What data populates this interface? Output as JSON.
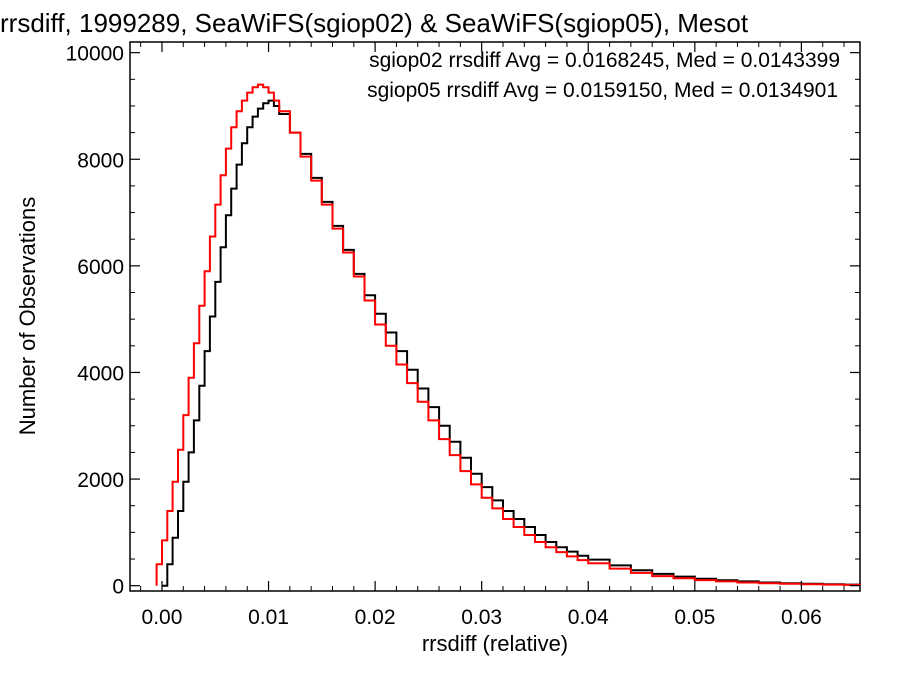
{
  "chart_data": {
    "type": "line",
    "title": "rrsdiff, 1999289, SeaWiFS(sgiop02) & SeaWiFS(sgiop05), Mesot",
    "xlabel": "rrsdiff (relative)",
    "ylabel": "Number of Observations",
    "xlim": [
      -0.003,
      0.0655
    ],
    "ylim": [
      -100,
      10200
    ],
    "xticks": [
      0.0,
      0.01,
      0.02,
      0.03,
      0.04,
      0.05,
      0.06
    ],
    "xtick_labels": [
      "0.00",
      "0.01",
      "0.02",
      "0.03",
      "0.04",
      "0.05",
      "0.06"
    ],
    "yticks": [
      0,
      2000,
      4000,
      6000,
      8000,
      10000
    ],
    "ytick_labels": [
      "0",
      "2000",
      "4000",
      "6000",
      "8000",
      "10000"
    ],
    "grid": false,
    "legend_position": "top-right",
    "series": [
      {
        "name": "sgiop02",
        "color": "#000000",
        "legend": "sgiop02 rrsdiff Avg = 0.0168245, Med = 0.0143399",
        "x": [
          0.0,
          0.0005,
          0.001,
          0.0015,
          0.002,
          0.0025,
          0.003,
          0.0035,
          0.004,
          0.0045,
          0.005,
          0.0055,
          0.006,
          0.0065,
          0.007,
          0.0075,
          0.008,
          0.0085,
          0.009,
          0.0095,
          0.01,
          0.0105,
          0.011,
          0.012,
          0.013,
          0.014,
          0.015,
          0.016,
          0.017,
          0.018,
          0.019,
          0.02,
          0.021,
          0.022,
          0.023,
          0.024,
          0.025,
          0.026,
          0.027,
          0.028,
          0.029,
          0.03,
          0.031,
          0.032,
          0.033,
          0.034,
          0.035,
          0.036,
          0.037,
          0.038,
          0.039,
          0.04,
          0.042,
          0.044,
          0.046,
          0.048,
          0.05,
          0.052,
          0.054,
          0.056,
          0.058,
          0.06,
          0.062,
          0.064,
          0.0655
        ],
        "y": [
          0,
          400,
          900,
          1400,
          1950,
          2500,
          3100,
          3750,
          4400,
          5050,
          5700,
          6350,
          6950,
          7450,
          7900,
          8300,
          8600,
          8800,
          8950,
          9050,
          9100,
          9000,
          8850,
          8500,
          8100,
          7650,
          7200,
          6750,
          6300,
          5850,
          5450,
          5100,
          4750,
          4400,
          4050,
          3700,
          3350,
          3000,
          2700,
          2400,
          2100,
          1850,
          1600,
          1400,
          1250,
          1100,
          950,
          820,
          720,
          640,
          560,
          490,
          380,
          290,
          220,
          170,
          130,
          100,
          80,
          60,
          45,
          35,
          25,
          20,
          15
        ]
      },
      {
        "name": "sgiop05",
        "color": "#ff0000",
        "legend": "sgiop05 rrsdiff Avg = 0.0159150, Med = 0.0134901",
        "x": [
          -0.0005,
          0.0,
          0.0005,
          0.001,
          0.0015,
          0.002,
          0.0025,
          0.003,
          0.0035,
          0.004,
          0.0045,
          0.005,
          0.0055,
          0.006,
          0.0065,
          0.007,
          0.0075,
          0.008,
          0.0085,
          0.009,
          0.0095,
          0.01,
          0.0105,
          0.011,
          0.012,
          0.013,
          0.014,
          0.015,
          0.016,
          0.017,
          0.018,
          0.019,
          0.02,
          0.021,
          0.022,
          0.023,
          0.024,
          0.025,
          0.026,
          0.027,
          0.028,
          0.029,
          0.03,
          0.031,
          0.032,
          0.033,
          0.034,
          0.035,
          0.036,
          0.037,
          0.038,
          0.039,
          0.04,
          0.042,
          0.044,
          0.046,
          0.048,
          0.05,
          0.052,
          0.054,
          0.056,
          0.058,
          0.06,
          0.062,
          0.064,
          0.0655
        ],
        "y": [
          400,
          850,
          1400,
          1950,
          2550,
          3200,
          3900,
          4550,
          5250,
          5900,
          6550,
          7150,
          7700,
          8200,
          8600,
          8900,
          9100,
          9250,
          9350,
          9400,
          9350,
          9250,
          9100,
          8900,
          8500,
          8050,
          7600,
          7150,
          6700,
          6250,
          5800,
          5350,
          4900,
          4500,
          4150,
          3800,
          3450,
          3100,
          2750,
          2450,
          2150,
          1900,
          1650,
          1450,
          1250,
          1100,
          950,
          820,
          720,
          630,
          550,
          480,
          420,
          320,
          240,
          180,
          140,
          105,
          80,
          60,
          45,
          35,
          25,
          20,
          15,
          10
        ]
      }
    ]
  }
}
